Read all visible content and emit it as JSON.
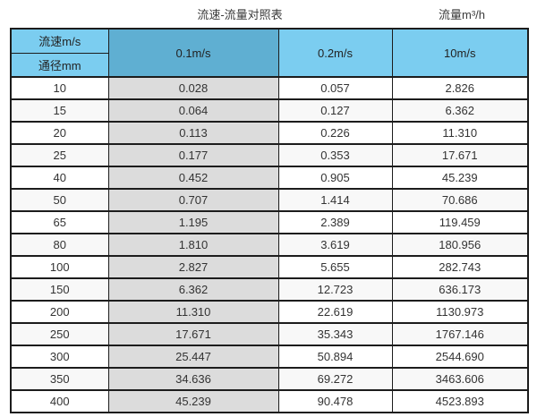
{
  "page": {
    "title": "流速-流量对照表",
    "unit_label": "流量m³/h"
  },
  "colors": {
    "header_blue": "#7bcdf0",
    "header_dark_blue": "#5fafd2",
    "highlight_column_gray": "#dcdcdc",
    "border": "#1c1c1c",
    "text": "#333333"
  },
  "chart_data": {
    "type": "table",
    "title": "流速-流量对照表",
    "unit_label": "流量m³/h",
    "corner_top": "流速m/s",
    "corner_bottom": "通径mm",
    "columns": [
      "0.1m/s",
      "0.2m/s",
      "10m/s"
    ],
    "row_header_label": "通径mm",
    "rows": [
      [
        "10",
        "0.028",
        "0.057",
        "2.826"
      ],
      [
        "15",
        "0.064",
        "0.127",
        "6.362"
      ],
      [
        "20",
        "0.113",
        "0.226",
        "11.310"
      ],
      [
        "25",
        "0.177",
        "0.353",
        "17.671"
      ],
      [
        "40",
        "0.452",
        "0.905",
        "45.239"
      ],
      [
        "50",
        "0.707",
        "1.414",
        "70.686"
      ],
      [
        "65",
        "1.195",
        "2.389",
        "119.459"
      ],
      [
        "80",
        "1.810",
        "3.619",
        "180.956"
      ],
      [
        "100",
        "2.827",
        "5.655",
        "282.743"
      ],
      [
        "150",
        "6.362",
        "12.723",
        "636.173"
      ],
      [
        "200",
        "11.310",
        "22.619",
        "1130.973"
      ],
      [
        "250",
        "17.671",
        "35.343",
        "1767.146"
      ],
      [
        "300",
        "25.447",
        "50.894",
        "2544.690"
      ],
      [
        "350",
        "34.636",
        "69.272",
        "3463.606"
      ],
      [
        "400",
        "45.239",
        "90.478",
        "4523.893"
      ]
    ]
  }
}
